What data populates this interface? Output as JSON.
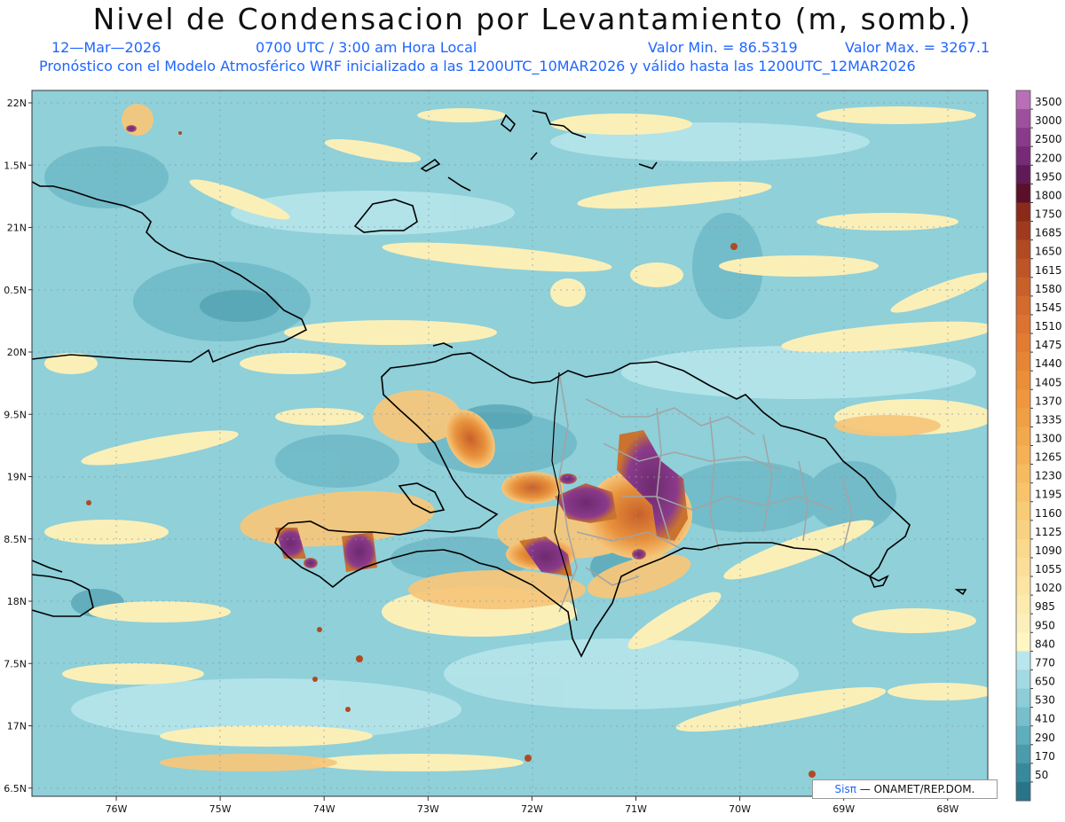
{
  "title": "Nivel de Condensacion por Levantamiento (m, somb.)",
  "date": "12—Mar—2026",
  "time": "0700 UTC / 3:00 am Hora Local",
  "valor_min": "Valor Min. = 86.5319",
  "valor_max": "Valor Max. = 3267.1",
  "forecast_line": "Pronóstico con el Modelo Atmosférico WRF inicializado a las 1200UTC_10MAR2026 y válido hasta las  1200UTC_12MAR2026",
  "credit_brand": "Sisπ",
  "credit_text": " — ONAMET/REP.DOM.",
  "lat_labels": [
    "22N",
    "1.5N",
    "21N",
    "0.5N",
    "20N",
    "9.5N",
    "19N",
    "8.5N",
    "18N",
    "7.5N",
    "17N",
    "6.5N"
  ],
  "lon_labels": [
    "76W",
    "75W",
    "74W",
    "73W",
    "72W",
    "71W",
    "70W",
    "69W",
    "68W"
  ],
  "colorbar": [
    {
      "label": "3500",
      "color": "#b86fb8"
    },
    {
      "label": "3000",
      "color": "#9e4f9e"
    },
    {
      "label": "2500",
      "color": "#8a3a8a"
    },
    {
      "label": "2200",
      "color": "#772a77"
    },
    {
      "label": "1950",
      "color": "#601a55"
    },
    {
      "label": "1800",
      "color": "#5a1028"
    },
    {
      "label": "1750",
      "color": "#8a2a1a"
    },
    {
      "label": "1685",
      "color": "#a03a1e"
    },
    {
      "label": "1650",
      "color": "#b04a22"
    },
    {
      "label": "1615",
      "color": "#bd5526"
    },
    {
      "label": "1580",
      "color": "#c8602a"
    },
    {
      "label": "1545",
      "color": "#d36a2e"
    },
    {
      "label": "1510",
      "color": "#dc7330"
    },
    {
      "label": "1475",
      "color": "#e27c33"
    },
    {
      "label": "1440",
      "color": "#e78536"
    },
    {
      "label": "1405",
      "color": "#eb8e3a"
    },
    {
      "label": "1370",
      "color": "#ee973e"
    },
    {
      "label": "1335",
      "color": "#f09f44"
    },
    {
      "label": "1300",
      "color": "#f2a84c"
    },
    {
      "label": "1265",
      "color": "#f4b156"
    },
    {
      "label": "1230",
      "color": "#f6ba60"
    },
    {
      "label": "1195",
      "color": "#f7c36b"
    },
    {
      "label": "1160",
      "color": "#f8cb76"
    },
    {
      "label": "1125",
      "color": "#f9d281"
    },
    {
      "label": "1090",
      "color": "#fad98c"
    },
    {
      "label": "1055",
      "color": "#fbdf98"
    },
    {
      "label": "1020",
      "color": "#fce5a3"
    },
    {
      "label": "985",
      "color": "#fdeaaf"
    },
    {
      "label": "950",
      "color": "#fdefb9"
    },
    {
      "label": "840",
      "color": "#fff6c4"
    },
    {
      "label": "770",
      "color": "#b9e6ec"
    },
    {
      "label": "650",
      "color": "#a1dae2"
    },
    {
      "label": "530",
      "color": "#8ccdd7"
    },
    {
      "label": "410",
      "color": "#76bfcb"
    },
    {
      "label": "290",
      "color": "#5faebd"
    },
    {
      "label": "170",
      "color": "#4a9cad"
    },
    {
      "label": "50",
      "color": "#37899c"
    },
    {
      "label": "",
      "color": "#2a7489"
    }
  ]
}
